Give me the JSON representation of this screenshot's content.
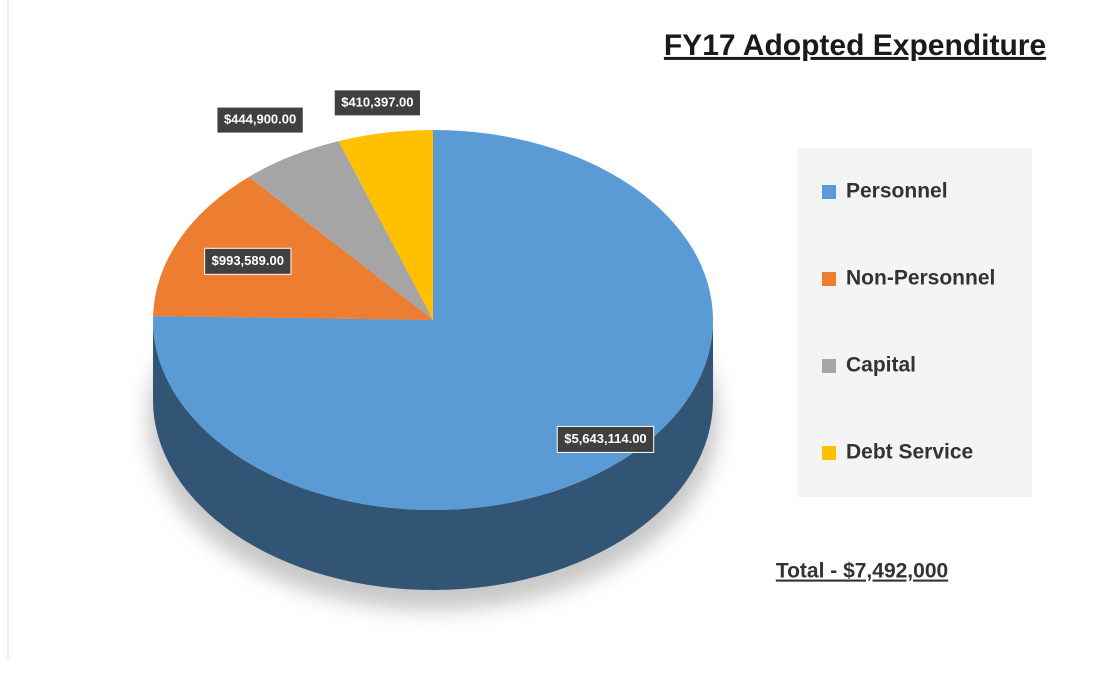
{
  "chart_data": {
    "type": "pie",
    "title": "FY17 Adopted Expenditure",
    "categories": [
      "Personnel",
      "Non-Personnel",
      "Capital",
      "Debt Service"
    ],
    "values": [
      5643114,
      993589,
      444900,
      410397
    ],
    "value_labels": [
      "$5,643,114.00",
      "$993,589.00",
      "$444,900.00",
      "$410,397.00"
    ],
    "colors": [
      "#5b9bd5",
      "#ed7d31",
      "#a5a5a5",
      "#ffc000"
    ],
    "annotation": "Total - $7,492,000",
    "legend": "right"
  }
}
